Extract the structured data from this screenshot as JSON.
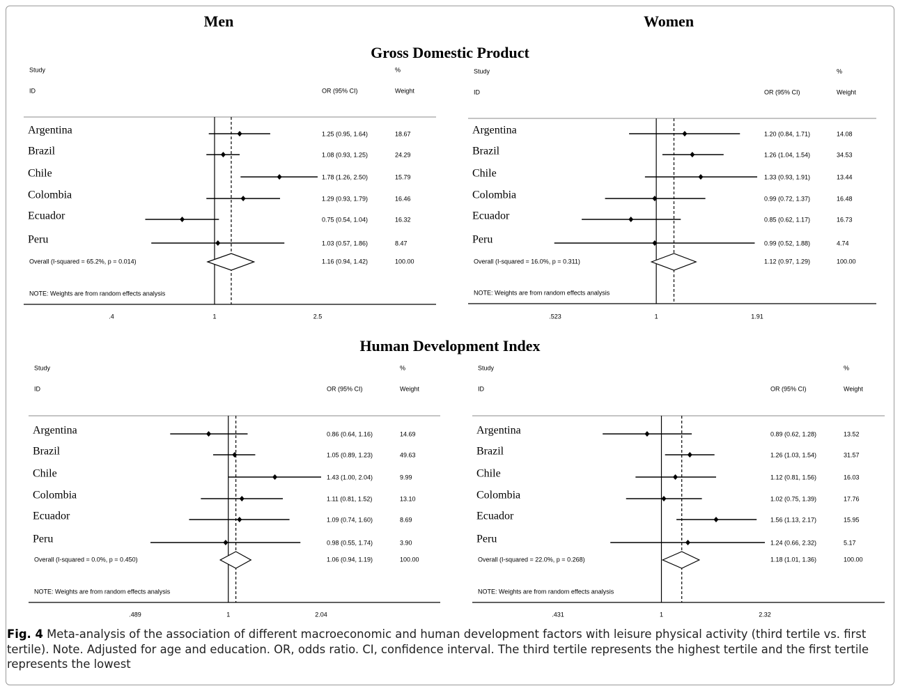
{
  "headings": {
    "men": "Men",
    "women": "Women",
    "gdp": "Gross Domestic Product",
    "hdi": "Human Development Index"
  },
  "caption": {
    "label": "Fig. 4",
    "text": " Meta-analysis of the association of different macroeconomic and human development factors with leisure physical activity (third tertile vs. first tertile). Note. Adjusted for age and education. OR, odds ratio. CI, confidence interval. The third tertile represents the highest tertile and the first tertile represents the lowest"
  },
  "chart_data": [
    {
      "type": "forest",
      "section": "Gross Domestic Product",
      "group": "Men",
      "header": {
        "study": "Study",
        "id": "ID",
        "or_ci": "OR (95% CI)",
        "pct": "%",
        "weight": "Weight"
      },
      "scale": "log",
      "xticks": [
        0.4,
        1,
        2.5
      ],
      "xtick_labels": [
        ".4",
        "1",
        "2.5"
      ],
      "null_line": 1,
      "studies": [
        {
          "name": "Argentina",
          "or": 1.25,
          "lo": 0.95,
          "hi": 1.64,
          "label": "1.25 (0.95, 1.64)",
          "weight": "18.67"
        },
        {
          "name": "Brazil",
          "or": 1.08,
          "lo": 0.93,
          "hi": 1.25,
          "label": "1.08 (0.93, 1.25)",
          "weight": "24.29"
        },
        {
          "name": "Chile",
          "or": 1.78,
          "lo": 1.26,
          "hi": 2.5,
          "label": "1.78 (1.26, 2.50)",
          "weight": "15.79"
        },
        {
          "name": "Colombia",
          "or": 1.29,
          "lo": 0.93,
          "hi": 1.79,
          "label": "1.29 (0.93, 1.79)",
          "weight": "16.46"
        },
        {
          "name": "Ecuador",
          "or": 0.75,
          "lo": 0.54,
          "hi": 1.04,
          "label": "0.75 (0.54, 1.04)",
          "weight": "16.32"
        },
        {
          "name": "Peru",
          "or": 1.03,
          "lo": 0.57,
          "hi": 1.86,
          "label": "1.03 (0.57, 1.86)",
          "weight": "8.47"
        }
      ],
      "overall": {
        "text": "Overall  (I-squared = 65.2%, p = 0.014)",
        "or": 1.16,
        "lo": 0.94,
        "hi": 1.42,
        "label": "1.16 (0.94, 1.42)",
        "weight": "100.00"
      },
      "note": "NOTE: Weights are from random effects analysis"
    },
    {
      "type": "forest",
      "section": "Gross Domestic Product",
      "group": "Women",
      "header": {
        "study": "Study",
        "id": "ID",
        "or_ci": "OR (95% CI)",
        "pct": "%",
        "weight": "Weight"
      },
      "scale": "log",
      "xticks": [
        0.523,
        1,
        1.91
      ],
      "xtick_labels": [
        ".523",
        "1",
        "1.91"
      ],
      "null_line": 1,
      "studies": [
        {
          "name": "Argentina",
          "or": 1.2,
          "lo": 0.84,
          "hi": 1.71,
          "label": "1.20 (0.84, 1.71)",
          "weight": "14.08"
        },
        {
          "name": "Brazil",
          "or": 1.26,
          "lo": 1.04,
          "hi": 1.54,
          "label": "1.26 (1.04, 1.54)",
          "weight": "34.53"
        },
        {
          "name": "Chile",
          "or": 1.33,
          "lo": 0.93,
          "hi": 1.91,
          "label": "1.33 (0.93, 1.91)",
          "weight": "13.44"
        },
        {
          "name": "Colombia",
          "or": 0.99,
          "lo": 0.72,
          "hi": 1.37,
          "label": "0.99 (0.72, 1.37)",
          "weight": "16.48"
        },
        {
          "name": "Ecuador",
          "or": 0.85,
          "lo": 0.62,
          "hi": 1.17,
          "label": "0.85 (0.62, 1.17)",
          "weight": "16.73"
        },
        {
          "name": "Peru",
          "or": 0.99,
          "lo": 0.52,
          "hi": 1.88,
          "label": "0.99 (0.52, 1.88)",
          "weight": "4.74"
        }
      ],
      "overall": {
        "text": "Overall  (I-squared = 16.0%, p = 0.311)",
        "or": 1.12,
        "lo": 0.97,
        "hi": 1.29,
        "label": "1.12 (0.97, 1.29)",
        "weight": "100.00"
      },
      "note": "NOTE: Weights are from random effects analysis"
    },
    {
      "type": "forest",
      "section": "Human Development Index",
      "group": "Men",
      "header": {
        "study": "Study",
        "id": "ID",
        "or_ci": "OR (95% CI)",
        "pct": "%",
        "weight": "Weight"
      },
      "scale": "log",
      "xticks": [
        0.489,
        1,
        2.04
      ],
      "xtick_labels": [
        ".489",
        "1",
        "2.04"
      ],
      "null_line": 1,
      "studies": [
        {
          "name": "Argentina",
          "or": 0.86,
          "lo": 0.64,
          "hi": 1.16,
          "label": "0.86 (0.64, 1.16)",
          "weight": "14.69"
        },
        {
          "name": "Brazil",
          "or": 1.05,
          "lo": 0.89,
          "hi": 1.23,
          "label": "1.05 (0.89, 1.23)",
          "weight": "49.63"
        },
        {
          "name": "Chile",
          "or": 1.43,
          "lo": 1.0,
          "hi": 2.04,
          "label": "1.43 (1.00, 2.04)",
          "weight": "9.99"
        },
        {
          "name": "Colombia",
          "or": 1.11,
          "lo": 0.81,
          "hi": 1.52,
          "label": "1.11 (0.81, 1.52)",
          "weight": "13.10"
        },
        {
          "name": "Ecuador",
          "or": 1.09,
          "lo": 0.74,
          "hi": 1.6,
          "label": "1.09 (0.74, 1.60)",
          "weight": "8.69"
        },
        {
          "name": "Peru",
          "or": 0.98,
          "lo": 0.55,
          "hi": 1.74,
          "label": "0.98 (0.55, 1.74)",
          "weight": "3.90"
        }
      ],
      "overall": {
        "text": "Overall  (I-squared = 0.0%, p = 0.450)",
        "or": 1.06,
        "lo": 0.94,
        "hi": 1.19,
        "label": "1.06 (0.94, 1.19)",
        "weight": "100.00"
      },
      "note": "NOTE: Weights are from random effects analysis"
    },
    {
      "type": "forest",
      "section": "Human Development Index",
      "group": "Women",
      "header": {
        "study": "Study",
        "id": "ID",
        "or_ci": "OR (95% CI)",
        "pct": "%",
        "weight": "Weight"
      },
      "scale": "log",
      "xticks": [
        0.431,
        1,
        2.32
      ],
      "xtick_labels": [
        ".431",
        "1",
        "2.32"
      ],
      "null_line": 1,
      "studies": [
        {
          "name": "Argentina",
          "or": 0.89,
          "lo": 0.62,
          "hi": 1.28,
          "label": "0.89 (0.62, 1.28)",
          "weight": "13.52"
        },
        {
          "name": "Brazil",
          "or": 1.26,
          "lo": 1.03,
          "hi": 1.54,
          "label": "1.26 (1.03, 1.54)",
          "weight": "31.57"
        },
        {
          "name": "Chile",
          "or": 1.12,
          "lo": 0.81,
          "hi": 1.56,
          "label": "1.12 (0.81, 1.56)",
          "weight": "16.03"
        },
        {
          "name": "Colombia",
          "or": 1.02,
          "lo": 0.75,
          "hi": 1.39,
          "label": "1.02 (0.75, 1.39)",
          "weight": "17.76"
        },
        {
          "name": "Ecuador",
          "or": 1.56,
          "lo": 1.13,
          "hi": 2.17,
          "label": "1.56 (1.13, 2.17)",
          "weight": "15.95"
        },
        {
          "name": "Peru",
          "or": 1.24,
          "lo": 0.66,
          "hi": 2.32,
          "label": "1.24 (0.66, 2.32)",
          "weight": "5.17"
        }
      ],
      "overall": {
        "text": "Overall  (I-squared = 22.0%, p = 0.268)",
        "or": 1.18,
        "lo": 1.01,
        "hi": 1.36,
        "label": "1.18 (1.01, 1.36)",
        "weight": "100.00"
      },
      "note": "NOTE: Weights are from random effects analysis"
    }
  ]
}
